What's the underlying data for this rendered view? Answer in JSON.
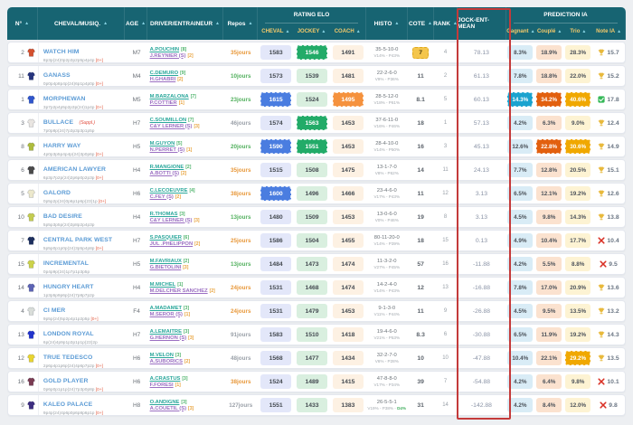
{
  "header": {
    "sort_icon": "▲",
    "cols": {
      "num": "N°",
      "horse": "CHEVAL/MUSIQ.",
      "age": "AGE",
      "driver": "DRIVER/ENTRAINEUR",
      "rest": "Repos",
      "rating": "RATING ELO",
      "rating_sub": [
        "CHEVAL",
        "JOCKEY",
        "COACH"
      ],
      "histo": "HISTO",
      "odds": "COTE",
      "rank": "RANK",
      "jem": "JOCK-ENT-MEAN",
      "prediction": "PREDICTION IA",
      "prediction_sub": [
        "Gagnant",
        "Couplé",
        "Trio",
        "Note IA"
      ]
    },
    "colors": {
      "bg": "#176472",
      "sub_label": "#f3c96a",
      "highlight_box": "#c43a3a"
    }
  },
  "rows": [
    {
      "num": "2",
      "silks": "#d4502e",
      "name": "WATCH HIM",
      "tag": "",
      "musique": "8p3p(24)0p2p3p2p5p4p4p",
      "msuf": "[0+]",
      "age": "M7",
      "driver": "A.POUCHIN",
      "dn": "[8]",
      "trainer": "J.REYNIER (S)",
      "tn": "[2]",
      "rest": "35jours",
      "rest_color": "orange",
      "elo_horse": "1583",
      "elo_horse_hl": false,
      "elo_jockey": "1546",
      "elo_jockey_hl": true,
      "elo_coach": "1491",
      "elo_coach_hl": false,
      "histo1": "35-5-10-0",
      "histo2": "V14% - P43%",
      "histo2g": "",
      "odds": "7",
      "odds_hl": true,
      "rank": "4",
      "jem": "78.13",
      "win": "8.3%",
      "win_hl": false,
      "place": "18.9%",
      "place_hl": false,
      "trio": "28.3%",
      "trio_hl": false,
      "note_icon": "trophy",
      "note": "15.7"
    },
    {
      "num": "11",
      "silks": "#27357e",
      "name": "GANASS",
      "tag": "",
      "musique": "0p0p4p8p4p(24)6p1p4p0p",
      "msuf": "[0+]",
      "age": "M4",
      "driver": "C.DEMURO",
      "dn": "[9]",
      "trainer": "H.GHABRI",
      "tn": "[2]",
      "rest": "10jours",
      "rest_color": "green",
      "elo_horse": "1573",
      "elo_horse_hl": false,
      "elo_jockey": "1539",
      "elo_jockey_hl": false,
      "elo_coach": "1481",
      "elo_coach_hl": false,
      "histo1": "22-2-6-0",
      "histo2": "V9% - P36%",
      "histo2g": "",
      "odds": "11",
      "odds_hl": false,
      "rank": "2",
      "jem": "61.13",
      "win": "7.8%",
      "win_hl": false,
      "place": "18.8%",
      "place_hl": false,
      "trio": "22.0%",
      "trio_hl": false,
      "note_icon": "trophy",
      "note": "15.2"
    },
    {
      "num": "1",
      "silks": "#2f55cc",
      "name": "MORPHEWAN",
      "tag": "",
      "musique": "3p7p2p4p5p2p3p(24)1p4p",
      "msuf": "[0+]",
      "age": "M5",
      "driver": "M.BARZALONA",
      "dn": "[7]",
      "trainer": "P.COTTIER",
      "tn": "[1]",
      "rest": "23jours",
      "rest_color": "green",
      "elo_horse": "1615",
      "elo_horse_hl": true,
      "elo_jockey": "1524",
      "elo_jockey_hl": false,
      "elo_coach": "1495",
      "elo_coach_hl": true,
      "histo1": "28-5-12-0",
      "histo2": "V18% - P61%",
      "histo2g": "",
      "odds": "8.1",
      "odds_hl": false,
      "rank": "5",
      "jem": "60.13",
      "win": "14.3%",
      "win_hl": true,
      "place": "34.2%",
      "place_hl": true,
      "trio": "40.6%",
      "trio_hl": true,
      "note_icon": "check",
      "note": "17.8"
    },
    {
      "num": "3",
      "silks": "#e9e5e1",
      "name": "BULLACE",
      "tag": "(Suppl.)",
      "musique": "7p0p8p(24)7p3p3p3p1p5p",
      "msuf": "",
      "age": "H7",
      "driver": "C.SOUMILLON",
      "dn": "[7]",
      "trainer": "C&Y LERNER (S)",
      "tn": "[3]",
      "rest": "46jours",
      "rest_color": "gray",
      "elo_horse": "1574",
      "elo_horse_hl": false,
      "elo_jockey": "1563",
      "elo_jockey_hl": true,
      "elo_coach": "1453",
      "elo_coach_hl": false,
      "histo1": "37-6-11-0",
      "histo2": "V16% - P46%",
      "histo2g": "",
      "odds": "18",
      "odds_hl": false,
      "rank": "1",
      "jem": "57.13",
      "win": "4.2%",
      "win_hl": false,
      "place": "6.3%",
      "place_hl": false,
      "trio": "9.0%",
      "trio_hl": false,
      "note_icon": "trophy",
      "note": "12.4"
    },
    {
      "num": "8",
      "silks": "#aebc3c",
      "name": "HARRY WAY",
      "tag": "",
      "musique": "4p0p3p5p4p4p(24)3p0p6p",
      "msuf": "[0+]",
      "age": "H5",
      "driver": "M.GUYON",
      "dn": "[5]",
      "trainer": "N.PERRET (S)",
      "tn": "[1]",
      "rest": "20jours",
      "rest_color": "green",
      "elo_horse": "1590",
      "elo_horse_hl": true,
      "elo_jockey": "1551",
      "elo_jockey_hl": true,
      "elo_coach": "1453",
      "elo_coach_hl": false,
      "histo1": "28-4-10-0",
      "histo2": "V14% - P50%",
      "histo2g": "",
      "odds": "16",
      "odds_hl": false,
      "rank": "3",
      "jem": "45.13",
      "win": "12.6%",
      "win_hl": false,
      "place": "22.8%",
      "place_hl": true,
      "trio": "30.6%",
      "trio_hl": true,
      "note_icon": "trophy",
      "note": "14.9"
    },
    {
      "num": "6",
      "silks": "#4a4a4a",
      "name": "AMERICAN LAWYER",
      "tag": "",
      "musique": "6p3p7p2p(24)2p6p0p2p3p",
      "msuf": "[0+]",
      "age": "H4",
      "driver": "R.MANGIONE",
      "dn": "[2]",
      "trainer": "A.BOTTI (S)",
      "tn": "[2]",
      "rest": "35jours",
      "rest_color": "orange",
      "elo_horse": "1515",
      "elo_horse_hl": false,
      "elo_jockey": "1508",
      "elo_jockey_hl": false,
      "elo_coach": "1475",
      "elo_coach_hl": false,
      "histo1": "13-1-7-0",
      "histo2": "V8% - P62%",
      "histo2g": "",
      "odds": "14",
      "odds_hl": false,
      "rank": "11",
      "jem": "24.13",
      "win": "7.7%",
      "win_hl": false,
      "place": "12.8%",
      "place_hl": false,
      "trio": "20.5%",
      "trio_hl": false,
      "note_icon": "trophy",
      "note": "15.1"
    },
    {
      "num": "5",
      "silks": "#ece8cc",
      "name": "GALORD",
      "tag": "",
      "musique": "0p5p2p(24)0p6p1p6p(23)1p",
      "msuf": "[0+]",
      "age": "H6",
      "driver": "C.LECOEUVRE",
      "dn": "[4]",
      "trainer": "C.FEY (S)",
      "tn": "[2]",
      "rest": "38jours",
      "rest_color": "orange",
      "elo_horse": "1600",
      "elo_horse_hl": true,
      "elo_jockey": "1496",
      "elo_jockey_hl": false,
      "elo_coach": "1466",
      "elo_coach_hl": false,
      "histo1": "23-4-6-0",
      "histo2": "V17% - P43%",
      "histo2g": "",
      "odds": "11",
      "odds_hl": false,
      "rank": "12",
      "jem": "3.13",
      "win": "6.5%",
      "win_hl": false,
      "place": "12.1%",
      "place_hl": false,
      "trio": "19.2%",
      "trio_hl": false,
      "note_icon": "trophy",
      "note": "12.6"
    },
    {
      "num": "10",
      "silks": "#c4cc50",
      "name": "BAD DESIRE",
      "tag": "",
      "musique": "5p5p3p5p(24)3p8p2p4p3p",
      "msuf": "",
      "age": "H4",
      "driver": "R.THOMAS",
      "dn": "[3]",
      "trainer": "C&Y LERNER (S)",
      "tn": "[3]",
      "rest": "13jours",
      "rest_color": "green",
      "elo_horse": "1480",
      "elo_horse_hl": false,
      "elo_jockey": "1509",
      "elo_jockey_hl": false,
      "elo_coach": "1453",
      "elo_coach_hl": false,
      "histo1": "13-0-6-0",
      "histo2": "V0% - P46%",
      "histo2g": "",
      "odds": "19",
      "odds_hl": false,
      "rank": "8",
      "jem": "3.13",
      "win": "4.5%",
      "win_hl": false,
      "place": "9.8%",
      "place_hl": false,
      "trio": "14.3%",
      "trio_hl": false,
      "note_icon": "trophy",
      "note": "13.8"
    },
    {
      "num": "7",
      "silks": "#1d2f5e",
      "name": "CENTRAL PARK WEST",
      "tag": "",
      "musique": "5p5p0p1p0p(24)3p5p4p8p",
      "msuf": "[0+]",
      "age": "H7",
      "driver": "S.PASQUIER",
      "dn": "[6]",
      "trainer": "JUL .PHELIPPON",
      "tn": "[2]",
      "rest": "25jours",
      "rest_color": "orange",
      "elo_horse": "1586",
      "elo_horse_hl": false,
      "elo_jockey": "1504",
      "elo_jockey_hl": false,
      "elo_coach": "1455",
      "elo_coach_hl": false,
      "histo1": "80-11-20-0",
      "histo2": "V14% - P39%",
      "histo2g": "",
      "odds": "18",
      "odds_hl": false,
      "rank": "15",
      "jem": "0.13",
      "win": "4.9%",
      "win_hl": false,
      "place": "10.4%",
      "place_hl": false,
      "trio": "17.7%",
      "trio_hl": false,
      "note_icon": "cross",
      "note": "10.4"
    },
    {
      "num": "15",
      "silks": "#ccd24a",
      "name": "INCREMENTAL",
      "tag": "",
      "musique": "0p4p9p(24)1p7p1p3p5p",
      "msuf": "",
      "age": "H5",
      "driver": "M.FAVRIAUX",
      "dn": "[2]",
      "trainer": "G.BIETOLINI",
      "tn": "[3]",
      "rest": "13jours",
      "rest_color": "green",
      "elo_horse": "1484",
      "elo_horse_hl": false,
      "elo_jockey": "1473",
      "elo_jockey_hl": false,
      "elo_coach": "1474",
      "elo_coach_hl": false,
      "histo1": "11-3-2-0",
      "histo2": "V27% - P45%",
      "histo2g": "",
      "odds": "57",
      "odds_hl": false,
      "rank": "16",
      "jem": "-11.88",
      "win": "4.2%",
      "win_hl": false,
      "place": "5.5%",
      "place_hl": false,
      "trio": "8.8%",
      "trio_hl": false,
      "note_icon": "cross",
      "note": "9.5"
    },
    {
      "num": "14",
      "silks": "#5c63b4",
      "name": "HUNGRY HEART",
      "tag": "",
      "musique": "1p3p5p9p6p(24)7p8p7p2p",
      "msuf": "",
      "age": "H4",
      "driver": "M.MICHEL",
      "dn": "[1]",
      "trainer": "M.DELCHER SANCHEZ",
      "tn": "[2]",
      "rest": "24jours",
      "rest_color": "orange",
      "elo_horse": "1531",
      "elo_horse_hl": false,
      "elo_jockey": "1468",
      "elo_jockey_hl": false,
      "elo_coach": "1474",
      "elo_coach_hl": false,
      "histo1": "14-2-4-0",
      "histo2": "V14% - P43%",
      "histo2g": "",
      "odds": "12",
      "odds_hl": false,
      "rank": "13",
      "jem": "-16.88",
      "win": "7.8%",
      "win_hl": false,
      "place": "17.0%",
      "place_hl": false,
      "trio": "20.9%",
      "trio_hl": false,
      "note_icon": "trophy",
      "note": "13.6"
    },
    {
      "num": "4",
      "silks": "#d9ddd9",
      "name": "CI MER",
      "tag": "",
      "musique": "9p5p(24)5p2p4p1p2p5p",
      "msuf": "[0+]",
      "age": "F4",
      "driver": "A.MADAMET",
      "dn": "[3]",
      "trainer": "M.SEROR (S)",
      "tn": "[1]",
      "rest": "24jours",
      "rest_color": "orange",
      "elo_horse": "1531",
      "elo_horse_hl": false,
      "elo_jockey": "1479",
      "elo_jockey_hl": false,
      "elo_coach": "1453",
      "elo_coach_hl": false,
      "histo1": "9-1-3-0",
      "histo2": "V11% - P44%",
      "histo2g": "",
      "odds": "11",
      "odds_hl": false,
      "rank": "9",
      "jem": "-26.88",
      "win": "4.5%",
      "win_hl": false,
      "place": "9.5%",
      "place_hl": false,
      "trio": "13.5%",
      "trio_hl": false,
      "note_icon": "trophy",
      "note": "13.2"
    },
    {
      "num": "13",
      "silks": "#2233cc",
      "name": "LONDON ROYAL",
      "tag": "",
      "musique": "6p(24)4p9p1p3p1p1p(23)2p",
      "msuf": "",
      "age": "H7",
      "driver": "A.LEMAITRE",
      "dn": "[3]",
      "trainer": "G.HERNON (S)",
      "tn": "[3]",
      "rest": "91jours",
      "rest_color": "gray",
      "elo_horse": "1583",
      "elo_horse_hl": false,
      "elo_jockey": "1510",
      "elo_jockey_hl": false,
      "elo_coach": "1418",
      "elo_coach_hl": false,
      "histo1": "19-4-6-0",
      "histo2": "V21% - P53%",
      "histo2g": "",
      "odds": "8.3",
      "odds_hl": false,
      "rank": "6",
      "jem": "-30.88",
      "win": "6.5%",
      "win_hl": false,
      "place": "11.9%",
      "place_hl": false,
      "trio": "19.2%",
      "trio_hl": false,
      "note_icon": "trophy",
      "note": "14.3"
    },
    {
      "num": "12",
      "silks": "#e8d430",
      "name": "TRUE TEDESCO",
      "tag": "",
      "musique": "2p6p4p1p6p(24)4p6p7p2p",
      "msuf": "[0+]",
      "age": "H6",
      "driver": "M.VELON",
      "dn": "[3]",
      "trainer": "A.SUBORICS",
      "tn": "[2]",
      "rest": "48jours",
      "rest_color": "gray",
      "elo_horse": "1568",
      "elo_horse_hl": false,
      "elo_jockey": "1477",
      "elo_jockey_hl": false,
      "elo_coach": "1434",
      "elo_coach_hl": false,
      "histo1": "32-2-7-0",
      "histo2": "V6% - P28%",
      "histo2g": "",
      "odds": "10",
      "odds_hl": false,
      "rank": "10",
      "jem": "-47.88",
      "win": "10.4%",
      "win_hl": false,
      "place": "22.1%",
      "place_hl": false,
      "trio": "29.2%",
      "trio_hl": true,
      "note_icon": "trophy",
      "note": "13.5"
    },
    {
      "num": "16",
      "silks": "#7a3b52",
      "name": "GOLD PLAYER",
      "tag": "",
      "musique": "0p6p0p1p1p(24)7p3p0p8p",
      "msuf": "[0+]",
      "age": "H6",
      "driver": "A.CRASTUS",
      "dn": "[3]",
      "trainer": "F.FORESI",
      "tn": "[1]",
      "rest": "38jours",
      "rest_color": "orange",
      "elo_horse": "1524",
      "elo_horse_hl": false,
      "elo_jockey": "1489",
      "elo_jockey_hl": false,
      "elo_coach": "1415",
      "elo_coach_hl": false,
      "histo1": "47-8-8-0",
      "histo2": "V17% - P34%",
      "histo2g": "",
      "odds": "39",
      "odds_hl": false,
      "rank": "7",
      "jem": "-54.88",
      "win": "4.2%",
      "win_hl": false,
      "place": "6.4%",
      "place_hl": false,
      "trio": "9.8%",
      "trio_hl": false,
      "note_icon": "cross",
      "note": "10.1"
    },
    {
      "num": "9",
      "silks": "#3d2d80",
      "name": "KALEO PALACE",
      "tag": "",
      "musique": "9p4p(24)4p6p0p6p8p6p1p",
      "msuf": "[0+]",
      "age": "H8",
      "driver": "O.ANDIGNE",
      "dn": "[3]",
      "trainer": "A.COUETIL (S)",
      "tn": "[3]",
      "rest": "127jours",
      "rest_color": "gray",
      "elo_horse": "1551",
      "elo_horse_hl": false,
      "elo_jockey": "1433",
      "elo_jockey_hl": false,
      "elo_coach": "1383",
      "elo_coach_hl": false,
      "histo1": "26-5-5-1",
      "histo2": "V19% - P38% -",
      "histo2g": "D4%",
      "odds": "31",
      "odds_hl": false,
      "rank": "14",
      "jem": "-142.88",
      "win": "4.2%",
      "win_hl": false,
      "place": "8.4%",
      "place_hl": false,
      "trio": "12.0%",
      "trio_hl": false,
      "note_icon": "cross",
      "note": "9.8"
    }
  ]
}
